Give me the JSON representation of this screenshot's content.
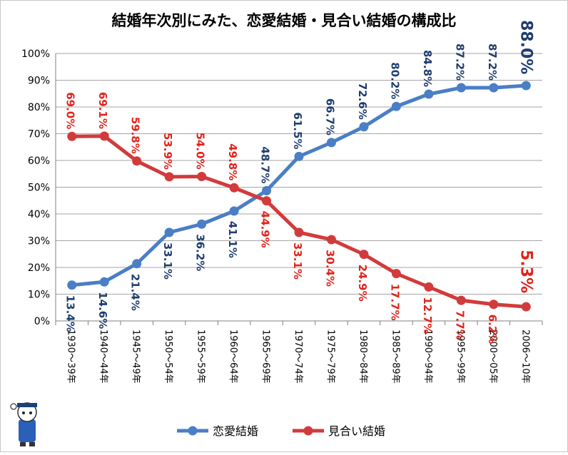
{
  "chart_data": {
    "type": "line",
    "title": "結婚年次別にみた、恋愛結婚・見合い結婚の構成比",
    "categories": [
      "1930～39年",
      "1940～44年",
      "1945～49年",
      "1950～54年",
      "1955～59年",
      "1960～64年",
      "1965～69年",
      "1970～74年",
      "1975～79年",
      "1980～84年",
      "1985～89年",
      "1990～94年",
      "1995～99年",
      "2000～05年",
      "2006～10年"
    ],
    "yticks": [
      "0%",
      "10%",
      "20%",
      "30%",
      "40%",
      "50%",
      "60%",
      "70%",
      "80%",
      "90%",
      "100%"
    ],
    "ylim": [
      0,
      100
    ],
    "grid": true,
    "legend_position": "bottom",
    "series": [
      {
        "name": "恋愛結婚",
        "color": "#4a7ec6",
        "label_color": "#1f3d6e",
        "values": [
          13.4,
          14.6,
          21.4,
          33.1,
          36.2,
          41.1,
          48.7,
          61.5,
          66.7,
          72.6,
          80.2,
          84.8,
          87.2,
          87.2,
          88.0
        ],
        "labels": [
          "13.4%",
          "14.6%",
          "21.4%",
          "33.1%",
          "36.2%",
          "41.1%",
          "48.7%",
          "61.5%",
          "66.7%",
          "72.6%",
          "80.2%",
          "84.8%",
          "87.2%",
          "87.2%",
          "88.0%"
        ]
      },
      {
        "name": "見合い結婚",
        "color": "#d23b3b",
        "label_color": "#e0241b",
        "values": [
          69.0,
          69.1,
          59.8,
          53.9,
          54.0,
          49.8,
          44.9,
          33.1,
          30.4,
          24.9,
          17.7,
          12.7,
          7.7,
          6.2,
          5.3
        ],
        "labels": [
          "69.0%",
          "69.1%",
          "59.8%",
          "53.9%",
          "54.0%",
          "49.8%",
          "44.9%",
          "33.1%",
          "30.4%",
          "24.9%",
          "17.7%",
          "12.7%",
          "7.7%",
          "6.2%",
          "5.3%"
        ]
      }
    ]
  }
}
